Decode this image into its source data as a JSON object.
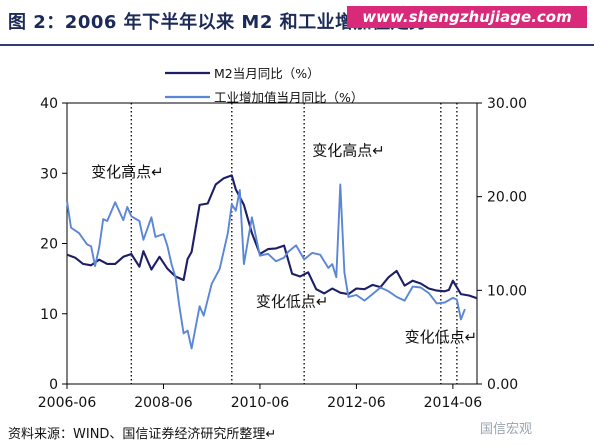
{
  "header": {
    "title": "图 2：2006 年下半年以来 M2 和工业增加值走势↵",
    "watermark": "www.shengzhujiage.com"
  },
  "footer": {
    "source": "资料来源：WIND、国信证券经济研究所整理↵",
    "logo_text": "国信宏观"
  },
  "colors": {
    "m2": "#1c1f66",
    "ind": "#5b86d6",
    "title": "#1c2a57",
    "watermark_bg": "#d92a7a"
  },
  "chart_data": {
    "type": "line",
    "title": "图 2：2006 年下半年以来 M2 和工业增加值走势",
    "x_tick_labels": [
      "2006-06",
      "2008-06",
      "2010-06",
      "2012-06",
      "2014-06"
    ],
    "xlim": [
      "2006-06",
      "2014-12"
    ],
    "y_left": {
      "lim": [
        0,
        40
      ],
      "ticks": [
        "0",
        "10",
        "20",
        "30",
        "40"
      ]
    },
    "y_right": {
      "lim": [
        0,
        30
      ],
      "ticks": [
        "0.00",
        "10.00",
        "20.00",
        "30.00"
      ]
    },
    "legend": {
      "position": "top-center"
    },
    "vertical_markers": [
      "2007-10",
      "2009-11",
      "2011-05",
      "2014-03",
      "2014-07"
    ],
    "annotations": [
      {
        "text": "变化高点↵",
        "date": "2006-12",
        "value_left": 29.5
      },
      {
        "text": "变化高点↵",
        "date": "2011-07",
        "value_left": 32.5
      },
      {
        "text": "变化低点↵",
        "date": "2010-05",
        "value_left": 11
      },
      {
        "text": "变化低点↵",
        "date": "2013-06",
        "value_left": 6
      }
    ],
    "series": [
      {
        "name": "M2当月同比（%）",
        "axis": "left",
        "points": [
          [
            "2006-06",
            18.4
          ],
          [
            "2006-08",
            18.0
          ],
          [
            "2006-10",
            17.1
          ],
          [
            "2006-12",
            16.9
          ],
          [
            "2007-02",
            17.7
          ],
          [
            "2007-04",
            17.1
          ],
          [
            "2007-06",
            17.1
          ],
          [
            "2007-08",
            18.1
          ],
          [
            "2007-10",
            18.5
          ],
          [
            "2007-12",
            16.7
          ],
          [
            "2008-01",
            18.9
          ],
          [
            "2008-03",
            16.3
          ],
          [
            "2008-05",
            18.1
          ],
          [
            "2008-07",
            16.4
          ],
          [
            "2008-09",
            15.3
          ],
          [
            "2008-11",
            14.8
          ],
          [
            "2008-12",
            17.8
          ],
          [
            "2009-01",
            18.8
          ],
          [
            "2009-03",
            25.5
          ],
          [
            "2009-05",
            25.7
          ],
          [
            "2009-07",
            28.4
          ],
          [
            "2009-09",
            29.3
          ],
          [
            "2009-11",
            29.7
          ],
          [
            "2009-12",
            27.7
          ],
          [
            "2010-02",
            25.5
          ],
          [
            "2010-04",
            21.5
          ],
          [
            "2010-06",
            18.5
          ],
          [
            "2010-08",
            19.2
          ],
          [
            "2010-10",
            19.3
          ],
          [
            "2010-12",
            19.7
          ],
          [
            "2011-02",
            15.7
          ],
          [
            "2011-04",
            15.3
          ],
          [
            "2011-06",
            15.9
          ],
          [
            "2011-08",
            13.5
          ],
          [
            "2011-10",
            12.9
          ],
          [
            "2011-12",
            13.6
          ],
          [
            "2012-02",
            13.0
          ],
          [
            "2012-04",
            12.8
          ],
          [
            "2012-06",
            13.6
          ],
          [
            "2012-08",
            13.5
          ],
          [
            "2012-10",
            14.1
          ],
          [
            "2012-12",
            13.8
          ],
          [
            "2013-02",
            15.2
          ],
          [
            "2013-04",
            16.1
          ],
          [
            "2013-06",
            14.0
          ],
          [
            "2013-08",
            14.7
          ],
          [
            "2013-10",
            14.3
          ],
          [
            "2013-12",
            13.6
          ],
          [
            "2014-02",
            13.3
          ],
          [
            "2014-04",
            13.2
          ],
          [
            "2014-05",
            13.4
          ],
          [
            "2014-06",
            14.7
          ],
          [
            "2014-08",
            12.8
          ],
          [
            "2014-10",
            12.6
          ],
          [
            "2014-12",
            12.2
          ]
        ]
      },
      {
        "name": "工业增加值当月同比（%）",
        "axis": "right",
        "points": [
          [
            "2006-06",
            19.5
          ],
          [
            "2006-07",
            16.7
          ],
          [
            "2006-09",
            16.1
          ],
          [
            "2006-11",
            14.9
          ],
          [
            "2006-12",
            14.7
          ],
          [
            "2007-01",
            12.6
          ],
          [
            "2007-02",
            14.6
          ],
          [
            "2007-03",
            17.6
          ],
          [
            "2007-04",
            17.4
          ],
          [
            "2007-06",
            19.4
          ],
          [
            "2007-08",
            17.5
          ],
          [
            "2007-09",
            18.9
          ],
          [
            "2007-10",
            17.9
          ],
          [
            "2007-12",
            17.4
          ],
          [
            "2008-01",
            15.4
          ],
          [
            "2008-03",
            17.8
          ],
          [
            "2008-04",
            15.7
          ],
          [
            "2008-06",
            16.0
          ],
          [
            "2008-07",
            14.7
          ],
          [
            "2008-08",
            12.8
          ],
          [
            "2008-09",
            11.4
          ],
          [
            "2008-10",
            8.2
          ],
          [
            "2008-11",
            5.4
          ],
          [
            "2008-12",
            5.7
          ],
          [
            "2009-01",
            3.8
          ],
          [
            "2009-03",
            8.3
          ],
          [
            "2009-04",
            7.3
          ],
          [
            "2009-06",
            10.7
          ],
          [
            "2009-08",
            12.3
          ],
          [
            "2009-10",
            16.1
          ],
          [
            "2009-11",
            19.2
          ],
          [
            "2009-12",
            18.5
          ],
          [
            "2010-01",
            20.7
          ],
          [
            "2010-02",
            12.8
          ],
          [
            "2010-04",
            17.8
          ],
          [
            "2010-06",
            13.7
          ],
          [
            "2010-08",
            13.9
          ],
          [
            "2010-10",
            13.1
          ],
          [
            "2010-12",
            13.5
          ],
          [
            "2011-01",
            14.1
          ],
          [
            "2011-03",
            14.8
          ],
          [
            "2011-05",
            13.3
          ],
          [
            "2011-07",
            14.0
          ],
          [
            "2011-09",
            13.8
          ],
          [
            "2011-11",
            12.4
          ],
          [
            "2011-12",
            12.8
          ],
          [
            "2012-01",
            11.4
          ],
          [
            "2012-02",
            21.3
          ],
          [
            "2012-03",
            11.9
          ],
          [
            "2012-04",
            9.3
          ],
          [
            "2012-06",
            9.5
          ],
          [
            "2012-08",
            8.9
          ],
          [
            "2012-10",
            9.6
          ],
          [
            "2012-12",
            10.3
          ],
          [
            "2013-02",
            9.9
          ],
          [
            "2013-04",
            9.3
          ],
          [
            "2013-06",
            8.9
          ],
          [
            "2013-08",
            10.4
          ],
          [
            "2013-10",
            10.3
          ],
          [
            "2013-12",
            9.7
          ],
          [
            "2014-02",
            8.6
          ],
          [
            "2014-04",
            8.7
          ],
          [
            "2014-06",
            9.2
          ],
          [
            "2014-07",
            9.0
          ],
          [
            "2014-08",
            6.9
          ],
          [
            "2014-09",
            8.0
          ]
        ]
      }
    ]
  }
}
